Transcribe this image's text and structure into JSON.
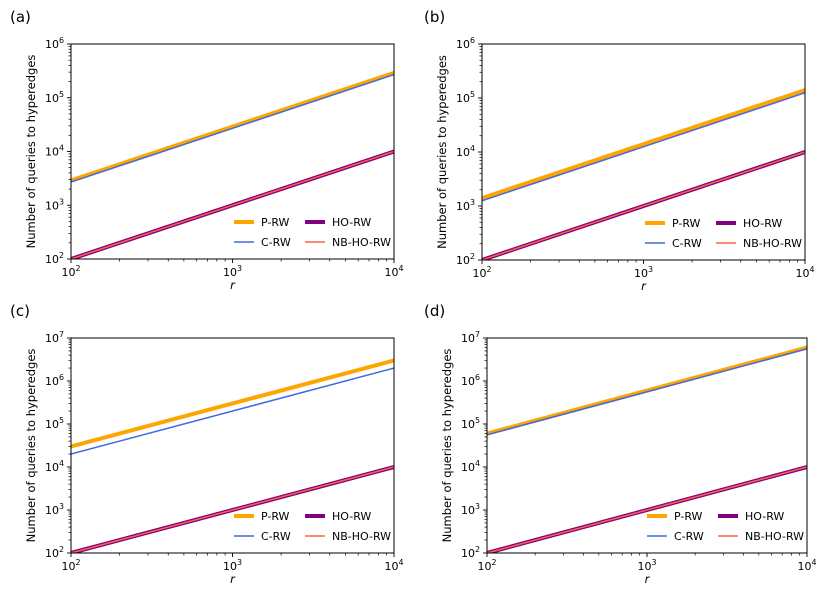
{
  "figure": {
    "panel_labels": [
      "(a)",
      "(b)",
      "(c)",
      "(d)"
    ]
  },
  "colors": {
    "P-RW": "#FFA500",
    "C-RW": "#4169E1",
    "HO-RW": "#800080",
    "NB-HO-RW": "#FF6347"
  },
  "chart_data": [
    {
      "type": "line",
      "panel": "(a)",
      "xscale": "log",
      "yscale": "log",
      "xlabel": "r",
      "ylabel": "Number of queries to hyperedges",
      "xlim": [
        100,
        10000
      ],
      "ylim": [
        100,
        1000000
      ],
      "xticks": [
        2,
        3,
        4
      ],
      "yticks": [
        2,
        3,
        4,
        5,
        6
      ],
      "legend": {
        "location": "lower-right",
        "columns": 2
      },
      "series": [
        {
          "name": "P-RW",
          "x": [
            100,
            10000
          ],
          "y": [
            2900,
            290000
          ]
        },
        {
          "name": "C-RW",
          "x": [
            100,
            10000
          ],
          "y": [
            2700,
            270000
          ]
        },
        {
          "name": "HO-RW",
          "x": [
            100,
            10000
          ],
          "y": [
            100,
            10000
          ]
        },
        {
          "name": "NB-HO-RW",
          "x": [
            100,
            10000
          ],
          "y": [
            100,
            10000
          ]
        }
      ]
    },
    {
      "type": "line",
      "panel": "(b)",
      "xscale": "log",
      "yscale": "log",
      "xlabel": "r",
      "ylabel": "Number of queries to hyperedges",
      "xlim": [
        100,
        10000
      ],
      "ylim": [
        100,
        1000000
      ],
      "xticks": [
        2,
        3,
        4
      ],
      "yticks": [
        2,
        3,
        4,
        5,
        6
      ],
      "legend": {
        "location": "lower-right",
        "columns": 2
      },
      "series": [
        {
          "name": "P-RW",
          "x": [
            100,
            10000
          ],
          "y": [
            1400,
            140000
          ]
        },
        {
          "name": "C-RW",
          "x": [
            100,
            10000
          ],
          "y": [
            1250,
            125000
          ]
        },
        {
          "name": "HO-RW",
          "x": [
            100,
            10000
          ],
          "y": [
            100,
            10000
          ]
        },
        {
          "name": "NB-HO-RW",
          "x": [
            100,
            10000
          ],
          "y": [
            100,
            10000
          ]
        }
      ]
    },
    {
      "type": "line",
      "panel": "(c)",
      "xscale": "log",
      "yscale": "log",
      "xlabel": "r",
      "ylabel": "Number of queries to hyperedges",
      "xlim": [
        100,
        10000
      ],
      "ylim": [
        100,
        10000000
      ],
      "xticks": [
        2,
        3,
        4
      ],
      "yticks": [
        2,
        3,
        4,
        5,
        6,
        7
      ],
      "legend": {
        "location": "lower-right",
        "columns": 2
      },
      "series": [
        {
          "name": "P-RW",
          "x": [
            100,
            10000
          ],
          "y": [
            30000,
            3000000
          ]
        },
        {
          "name": "C-RW",
          "x": [
            100,
            10000
          ],
          "y": [
            20000,
            2000000
          ]
        },
        {
          "name": "HO-RW",
          "x": [
            100,
            10000
          ],
          "y": [
            100,
            10000
          ]
        },
        {
          "name": "NB-HO-RW",
          "x": [
            100,
            10000
          ],
          "y": [
            100,
            10000
          ]
        }
      ]
    },
    {
      "type": "line",
      "panel": "(d)",
      "xscale": "log",
      "yscale": "log",
      "xlabel": "r",
      "ylabel": "Number of queries to hyperedges",
      "xlim": [
        100,
        10000
      ],
      "ylim": [
        100,
        10000000
      ],
      "xticks": [
        2,
        3,
        4
      ],
      "yticks": [
        2,
        3,
        4,
        5,
        6,
        7
      ],
      "legend": {
        "location": "lower-right",
        "columns": 2
      },
      "series": [
        {
          "name": "P-RW",
          "x": [
            100,
            10000
          ],
          "y": [
            60000,
            6000000
          ]
        },
        {
          "name": "C-RW",
          "x": [
            100,
            10000
          ],
          "y": [
            56000,
            5600000
          ]
        },
        {
          "name": "HO-RW",
          "x": [
            100,
            10000
          ],
          "y": [
            100,
            10000
          ]
        },
        {
          "name": "NB-HO-RW",
          "x": [
            100,
            10000
          ],
          "y": [
            100,
            10000
          ]
        }
      ]
    }
  ]
}
